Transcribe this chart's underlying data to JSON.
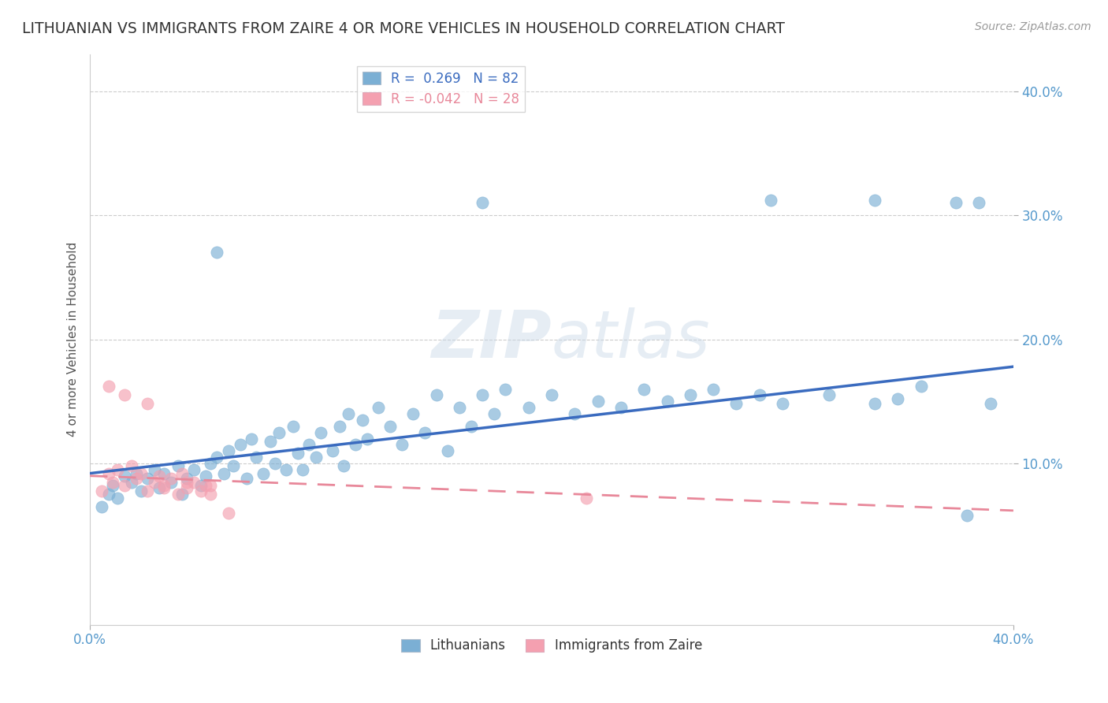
{
  "title": "LITHUANIAN VS IMMIGRANTS FROM ZAIRE 4 OR MORE VEHICLES IN HOUSEHOLD CORRELATION CHART",
  "source": "Source: ZipAtlas.com",
  "ylabel": "4 or more Vehicles in Household",
  "xlim": [
    0.0,
    0.4
  ],
  "ylim": [
    -0.03,
    0.43
  ],
  "xtick_vals": [
    0.0,
    0.4
  ],
  "xtick_labels": [
    "0.0%",
    "40.0%"
  ],
  "ytick_vals": [
    0.1,
    0.2,
    0.3,
    0.4
  ],
  "ytick_labels": [
    "10.0%",
    "20.0%",
    "30.0%",
    "40.0%"
  ],
  "grid_color": "#cccccc",
  "background_color": "#ffffff",
  "legend_R_blue": "0.269",
  "legend_N_blue": "82",
  "legend_R_pink": "-0.042",
  "legend_N_pink": "28",
  "blue_color": "#7bafd4",
  "pink_color": "#f4a0b0",
  "line_blue_color": "#3a6bbf",
  "line_pink_color": "#e8889a",
  "title_color": "#333333",
  "axis_label_color": "#555555",
  "tick_color": "#5599cc",
  "blue_line_start_y": 0.092,
  "blue_line_end_y": 0.178,
  "pink_line_start_y": 0.09,
  "pink_line_end_y": 0.062,
  "blue_x": [
    0.005,
    0.008,
    0.01,
    0.012,
    0.015,
    0.018,
    0.02,
    0.022,
    0.025,
    0.028,
    0.03,
    0.032,
    0.035,
    0.038,
    0.04,
    0.042,
    0.045,
    0.048,
    0.05,
    0.052,
    0.055,
    0.058,
    0.06,
    0.062,
    0.065,
    0.068,
    0.07,
    0.072,
    0.075,
    0.078,
    0.08,
    0.082,
    0.085,
    0.088,
    0.09,
    0.092,
    0.095,
    0.098,
    0.1,
    0.105,
    0.108,
    0.11,
    0.112,
    0.115,
    0.118,
    0.12,
    0.125,
    0.13,
    0.135,
    0.14,
    0.145,
    0.15,
    0.155,
    0.16,
    0.165,
    0.17,
    0.175,
    0.18,
    0.19,
    0.2,
    0.21,
    0.22,
    0.23,
    0.24,
    0.25,
    0.26,
    0.27,
    0.28,
    0.29,
    0.3,
    0.32,
    0.34,
    0.35,
    0.36,
    0.38,
    0.39,
    0.17,
    0.295,
    0.375,
    0.34,
    0.385,
    0.055
  ],
  "blue_y": [
    0.065,
    0.075,
    0.082,
    0.072,
    0.09,
    0.085,
    0.092,
    0.078,
    0.088,
    0.095,
    0.08,
    0.092,
    0.085,
    0.098,
    0.075,
    0.088,
    0.095,
    0.082,
    0.09,
    0.1,
    0.105,
    0.092,
    0.11,
    0.098,
    0.115,
    0.088,
    0.12,
    0.105,
    0.092,
    0.118,
    0.1,
    0.125,
    0.095,
    0.13,
    0.108,
    0.095,
    0.115,
    0.105,
    0.125,
    0.11,
    0.13,
    0.098,
    0.14,
    0.115,
    0.135,
    0.12,
    0.145,
    0.13,
    0.115,
    0.14,
    0.125,
    0.155,
    0.11,
    0.145,
    0.13,
    0.155,
    0.14,
    0.16,
    0.145,
    0.155,
    0.14,
    0.15,
    0.145,
    0.16,
    0.15,
    0.155,
    0.16,
    0.148,
    0.155,
    0.148,
    0.155,
    0.148,
    0.152,
    0.162,
    0.058,
    0.148,
    0.31,
    0.312,
    0.31,
    0.312,
    0.31,
    0.27
  ],
  "pink_x": [
    0.005,
    0.008,
    0.01,
    0.012,
    0.015,
    0.018,
    0.02,
    0.022,
    0.025,
    0.028,
    0.03,
    0.032,
    0.035,
    0.038,
    0.04,
    0.042,
    0.045,
    0.048,
    0.05,
    0.052,
    0.008,
    0.015,
    0.025,
    0.032,
    0.042,
    0.052,
    0.215,
    0.06
  ],
  "pink_y": [
    0.078,
    0.092,
    0.085,
    0.095,
    0.082,
    0.098,
    0.088,
    0.092,
    0.078,
    0.085,
    0.09,
    0.082,
    0.088,
    0.075,
    0.092,
    0.08,
    0.085,
    0.078,
    0.082,
    0.075,
    0.162,
    0.155,
    0.148,
    0.08,
    0.085,
    0.082,
    0.072,
    0.06
  ]
}
